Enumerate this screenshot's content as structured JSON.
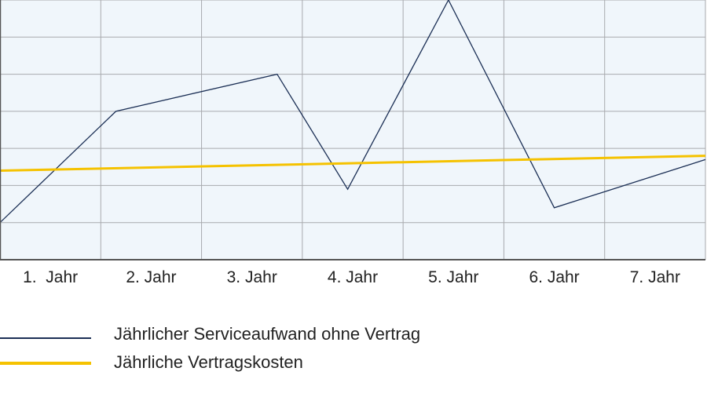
{
  "chart_data": {
    "type": "line",
    "categories": [
      "1.  Jahr",
      "2. Jahr",
      "3. Jahr",
      "4. Jahr",
      "5. Jahr",
      "6. Jahr",
      "7. Jahr"
    ],
    "ylim": [
      0,
      7
    ],
    "grid": true,
    "legend_position": "bottom",
    "series": [
      {
        "name": "Jährlicher Serviceaufwand ohne Vertrag",
        "color": "#1b2f55",
        "x": [
          0,
          1.15,
          2.75,
          3.45,
          4.45,
          5.5,
          7
        ],
        "values": [
          1.0,
          4.0,
          5.0,
          1.9,
          7.0,
          1.4,
          2.7
        ]
      },
      {
        "name": "Jährliche Vertragskosten",
        "color": "#f5c200",
        "x": [
          0,
          7
        ],
        "values": [
          2.4,
          2.8
        ]
      }
    ]
  },
  "legend": {
    "items": [
      {
        "label": "Jährlicher Serviceaufwand ohne Vertrag"
      },
      {
        "label": "Jährliche Vertragskosten"
      }
    ]
  },
  "colors": {
    "plot_background": "#f0f6fb",
    "grid": "#a8aaae",
    "axis": "#555555"
  }
}
